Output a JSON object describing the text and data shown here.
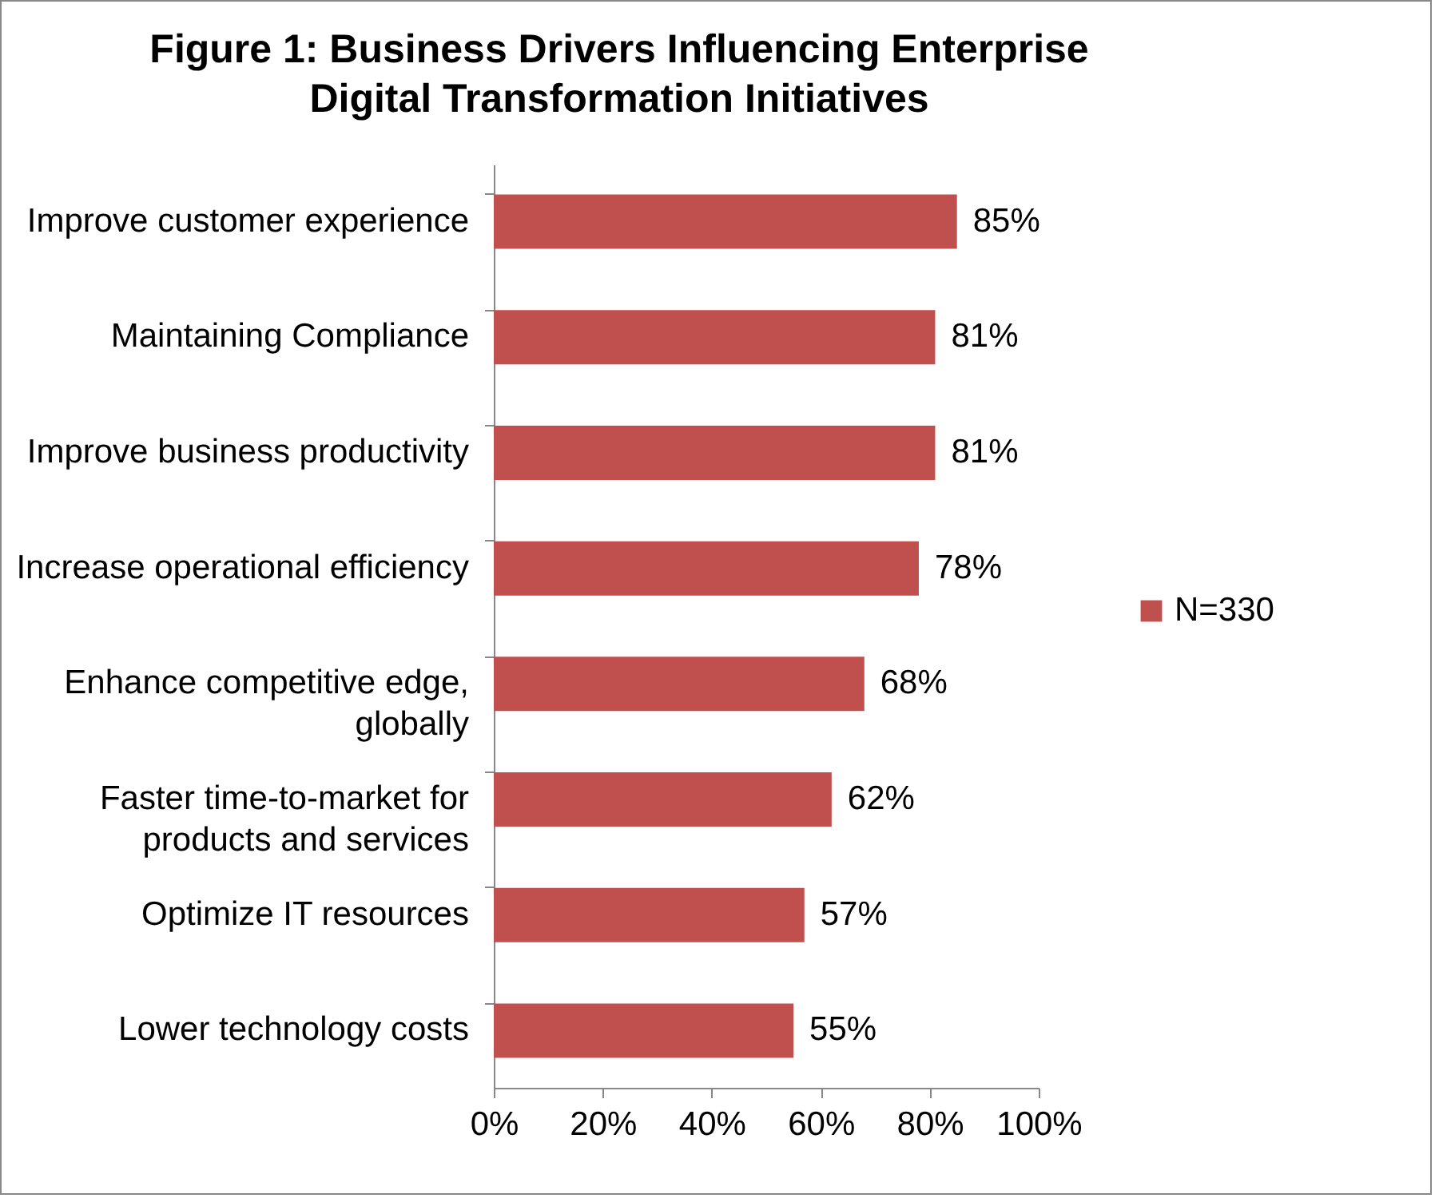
{
  "chart_data": {
    "type": "bar",
    "orientation": "horizontal",
    "title": "Figure 1: Business Drivers Influencing Enterprise\nDigital Transformation Initiatives",
    "categories": [
      "Improve customer experience",
      "Maintaining Compliance",
      "Improve business productivity",
      "Increase operational efficiency",
      "Enhance competitive edge,\nglobally",
      "Faster time-to-market for\nproducts and services",
      "Optimize IT resources",
      "Lower technology costs"
    ],
    "series": [
      {
        "name": "N=330",
        "color": "#c0504d",
        "values": [
          85,
          81,
          81,
          78,
          68,
          62,
          57,
          55
        ],
        "value_labels": [
          "85%",
          "81%",
          "81%",
          "78%",
          "68%",
          "62%",
          "57%",
          "55%"
        ]
      }
    ],
    "xlim": [
      0,
      100
    ],
    "xticks": [
      {
        "value": 0,
        "label": "0%"
      },
      {
        "value": 20,
        "label": "20%"
      },
      {
        "value": 40,
        "label": "40%"
      },
      {
        "value": 60,
        "label": "60%"
      },
      {
        "value": 80,
        "label": "80%"
      },
      {
        "value": 100,
        "label": "100%"
      }
    ],
    "legend": "right",
    "grid": false
  }
}
